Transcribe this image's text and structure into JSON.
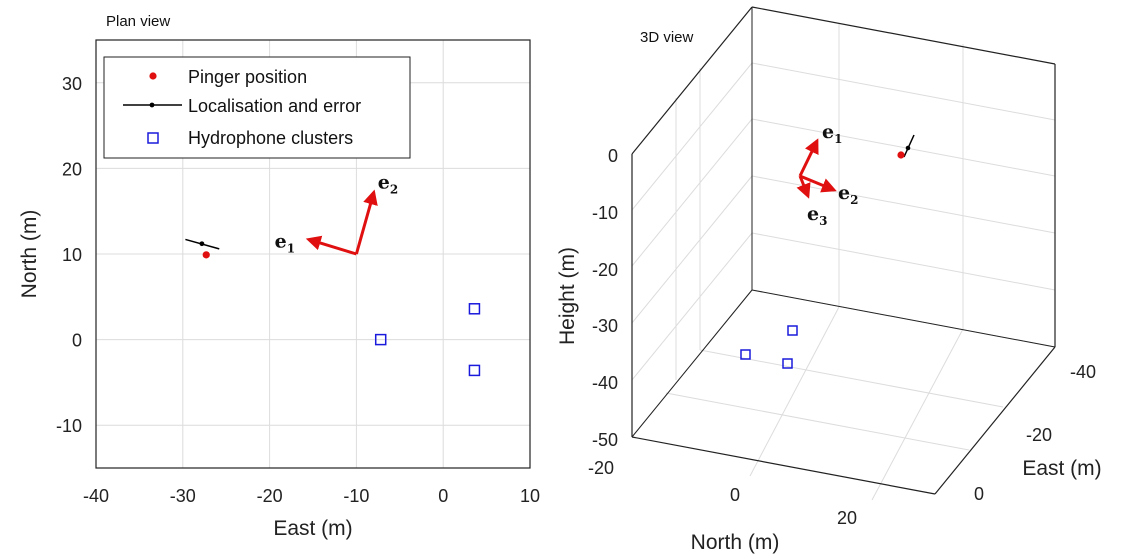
{
  "chart_data": [
    {
      "type": "scatter",
      "title": "Plan view",
      "xlabel": "East (m)",
      "ylabel": "North (m)",
      "xlim": [
        -40,
        10
      ],
      "ylim": [
        -15,
        35
      ],
      "xticks": [
        -40,
        -30,
        -20,
        -10,
        0,
        10
      ],
      "yticks": [
        -10,
        0,
        10,
        20,
        30
      ],
      "grid": true,
      "legend_position": "top-left",
      "legend": [
        "Pinger position",
        "Localisation and error",
        "Hydrophone clusters"
      ],
      "series": [
        {
          "name": "Pinger position",
          "marker": "dot",
          "color": "#e01010",
          "points": [
            {
              "x": -27.3,
              "y": 9.9
            }
          ]
        },
        {
          "name": "Localisation and error",
          "marker": "dot-line",
          "color": "#000000",
          "points": [
            {
              "x": -27.8,
              "y": 11.2
            }
          ],
          "error_segment": [
            {
              "x": -29.7,
              "y": 11.7
            },
            {
              "x": -25.8,
              "y": 10.6
            }
          ]
        },
        {
          "name": "Hydrophone clusters",
          "marker": "square",
          "color": "#1a1adc",
          "points": [
            {
              "x": -7.2,
              "y": 0
            },
            {
              "x": 3.6,
              "y": 3.6
            },
            {
              "x": 3.6,
              "y": -3.6
            }
          ]
        }
      ],
      "vectors": [
        {
          "name": "e1",
          "label": "e",
          "subscript": "1",
          "from": {
            "x": -10,
            "y": 10
          },
          "to": {
            "x": -15.5,
            "y": 11.7
          }
        },
        {
          "name": "e2",
          "label": "e",
          "subscript": "2",
          "from": {
            "x": -10,
            "y": 10
          },
          "to": {
            "x": -8.0,
            "y": 17.2
          }
        }
      ]
    },
    {
      "type": "scatter",
      "title": "3D view",
      "xlabel": "North (m)",
      "ylabel": "East (m)",
      "zlabel": "Height (m)",
      "xticks": [
        -20,
        0,
        20
      ],
      "yticks": [
        -40,
        -20,
        0
      ],
      "zticks": [
        0,
        -10,
        -20,
        -30,
        -40,
        -50
      ],
      "grid": true,
      "series": [
        {
          "name": "Pinger position",
          "marker": "dot",
          "color": "#e01010"
        },
        {
          "name": "Localisation and error",
          "marker": "dot-line",
          "color": "#000000"
        },
        {
          "name": "Hydrophone clusters",
          "marker": "square",
          "color": "#1a1adc"
        }
      ],
      "vectors": [
        {
          "name": "e1",
          "label": "e",
          "subscript": "1"
        },
        {
          "name": "e2",
          "label": "e",
          "subscript": "2"
        },
        {
          "name": "e3",
          "label": "e",
          "subscript": "3"
        }
      ]
    }
  ]
}
